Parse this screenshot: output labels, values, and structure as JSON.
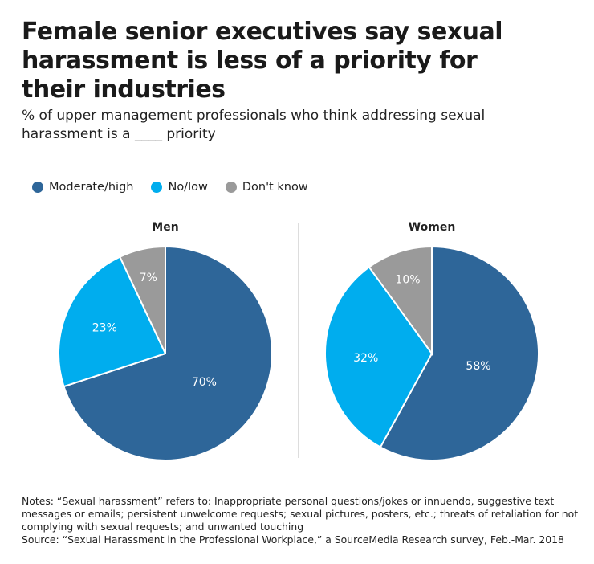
{
  "title": "Female senior executives say sexual harassment is less of a priority for their industries",
  "subtitle": "% of upper management professionals who think addressing sexual harassment is a ____ priority",
  "colors": {
    "moderate_high": "#2e6699",
    "no_low": "#00adee",
    "dont_know": "#9a9a9a"
  },
  "chart_data": [
    {
      "type": "pie",
      "title": "Men",
      "categories": [
        "Moderate/high",
        "No/low",
        "Don't know"
      ],
      "values": [
        70,
        23,
        7
      ],
      "labels": [
        "70%",
        "23%",
        "7%"
      ]
    },
    {
      "type": "pie",
      "title": "Women",
      "categories": [
        "Moderate/high",
        "No/low",
        "Don't know"
      ],
      "values": [
        58,
        32,
        10
      ],
      "labels": [
        "58%",
        "32%",
        "10%"
      ]
    }
  ],
  "legend": {
    "placement": "top-left",
    "items": [
      "Moderate/high",
      "No/low",
      "Don't know"
    ]
  },
  "notes": "Notes: “Sexual harassment” refers to: Inappropriate personal questions/jokes or innuendo, suggestive text messages or emails; persistent unwelcome requests; sexual pictures, posters, etc.; threats of retaliation for not complying with sexual requests; and unwanted touching",
  "source": "Source: “Sexual Harassment in the Professional Workplace,” a SourceMedia Research survey, Feb.-Mar. 2018"
}
